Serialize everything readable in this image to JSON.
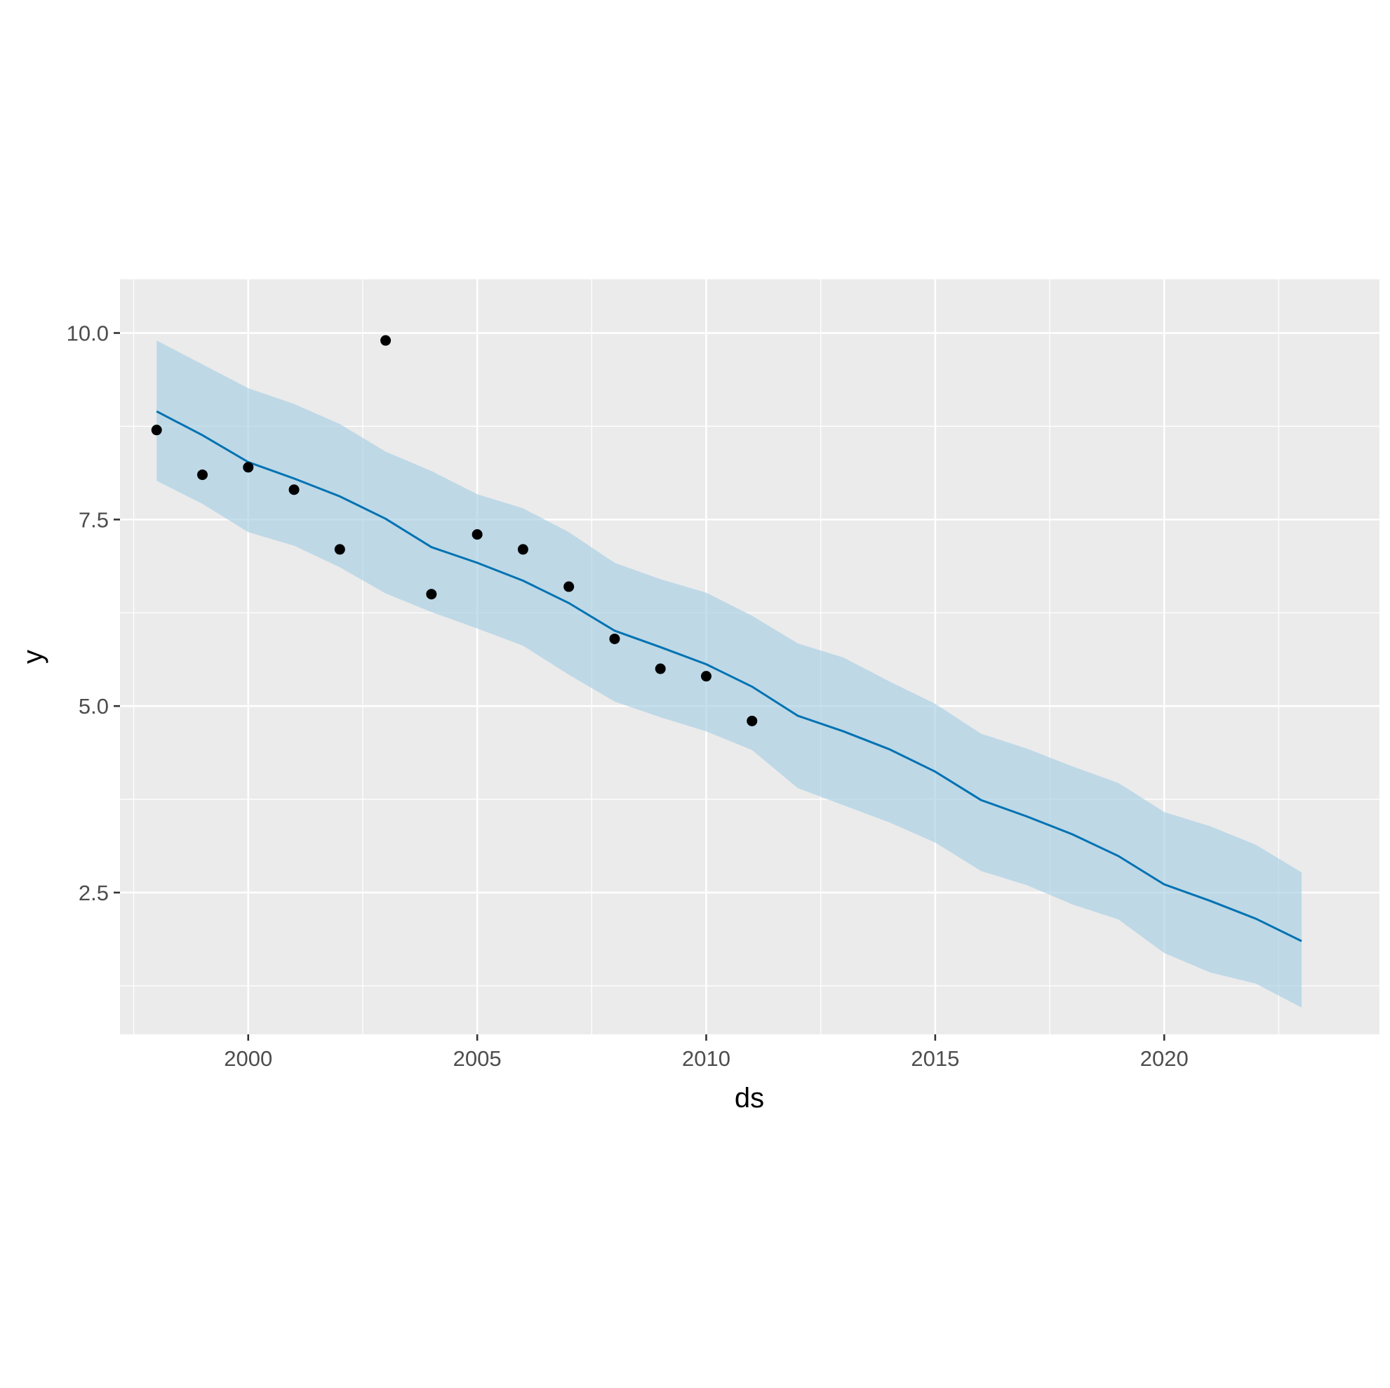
{
  "chart_data": {
    "type": "line",
    "xlabel": "ds",
    "ylabel": "y",
    "xlim": [
      1997.2,
      2024.7
    ],
    "ylim": [
      0.6,
      10.72
    ],
    "x_ticks": [
      2000,
      2005,
      2010,
      2015,
      2020
    ],
    "x_tick_labels": [
      "2000",
      "2005",
      "2010",
      "2015",
      "2020"
    ],
    "y_ticks": [
      2.5,
      5.0,
      7.5,
      10.0
    ],
    "y_tick_labels": [
      "2.5",
      "5.0",
      "7.5",
      "10.0"
    ],
    "grid": true,
    "colors": {
      "panel_background": "#EBEBEB",
      "grid": "#FFFFFF",
      "forecast_line": "#0072B2",
      "interval_fill": "#A6CEE3",
      "observed_points": "#000000",
      "tick_text": "#4D4D4D"
    },
    "observed": {
      "x": [
        1998,
        1999,
        2000,
        2001,
        2002,
        2003,
        2004,
        2005,
        2006,
        2007,
        2008,
        2009,
        2010,
        2011
      ],
      "y": [
        8.7,
        8.1,
        8.2,
        7.9,
        7.1,
        9.9,
        6.5,
        7.3,
        7.1,
        6.6,
        5.9,
        5.5,
        5.4,
        4.8
      ]
    },
    "forecast": {
      "x": [
        1998,
        1999,
        2000,
        2001,
        2002,
        2003,
        2004,
        2005,
        2006,
        2007,
        2008,
        2009,
        2010,
        2011,
        2012,
        2013,
        2014,
        2015,
        2016,
        2017,
        2018,
        2019,
        2020,
        2021,
        2022,
        2023
      ],
      "yhat": [
        8.95,
        8.63,
        8.27,
        8.05,
        7.81,
        7.51,
        7.13,
        6.92,
        6.68,
        6.38,
        6.01,
        5.79,
        5.56,
        5.26,
        4.87,
        4.66,
        4.42,
        4.12,
        3.74,
        3.52,
        3.28,
        2.99,
        2.61,
        2.39,
        2.15,
        1.85
      ],
      "yhat_lower": [
        8.02,
        7.71,
        7.33,
        7.15,
        6.86,
        6.51,
        6.26,
        6.04,
        5.81,
        5.42,
        5.06,
        4.85,
        4.66,
        4.41,
        3.9,
        3.67,
        3.44,
        3.17,
        2.79,
        2.6,
        2.34,
        2.14,
        1.69,
        1.43,
        1.28,
        0.96
      ],
      "yhat_upper": [
        9.9,
        9.58,
        9.26,
        9.05,
        8.78,
        8.41,
        8.15,
        7.84,
        7.65,
        7.33,
        6.92,
        6.7,
        6.52,
        6.21,
        5.84,
        5.65,
        5.33,
        5.03,
        4.63,
        4.43,
        4.19,
        3.97,
        3.58,
        3.39,
        3.14,
        2.77
      ]
    }
  }
}
